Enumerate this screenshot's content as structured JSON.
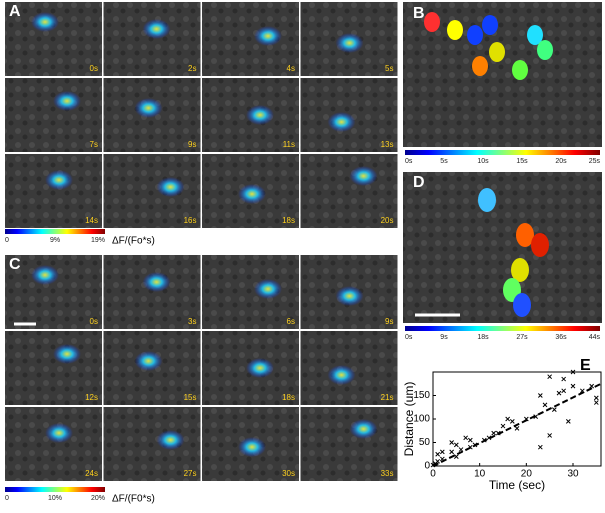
{
  "panels": {
    "A": {
      "label": "A",
      "times": [
        "0s",
        "2s",
        "4s",
        "5s",
        "7s",
        "9s",
        "11s",
        "13s",
        "14s",
        "16s",
        "18s",
        "20s"
      ],
      "colorbar_ticks": [
        "0",
        "9%",
        "19%"
      ],
      "colorbar_label": "ΔF/(Fo*s)"
    },
    "B": {
      "label": "B",
      "colorbar_ticks": [
        "0s",
        "5s",
        "10s",
        "15s",
        "20s",
        "25s"
      ]
    },
    "C": {
      "label": "C",
      "times": [
        "0s",
        "3s",
        "6s",
        "9s",
        "12s",
        "15s",
        "18s",
        "21s",
        "24s",
        "27s",
        "30s",
        "33s"
      ],
      "colorbar_ticks": [
        "0",
        "10%",
        "20%"
      ],
      "colorbar_label": "ΔF/(F0*s)"
    },
    "D": {
      "label": "D",
      "colorbar_ticks": [
        "0s",
        "9s",
        "18s",
        "27s",
        "36s",
        "44s"
      ]
    }
  },
  "chart_data": {
    "type": "scatter",
    "label": "E",
    "x_label": "Time (sec)",
    "y_label": "Distance (um)",
    "x": [
      0,
      0.5,
      1,
      1,
      2,
      2,
      4,
      4,
      5,
      5,
      6,
      7,
      8,
      8,
      9,
      11,
      12,
      13,
      14,
      15,
      16,
      17,
      18,
      20,
      22,
      23,
      23,
      24,
      25,
      25,
      26,
      27,
      28,
      28,
      29,
      30,
      30,
      32,
      34,
      35,
      35
    ],
    "y": [
      2,
      5,
      10,
      25,
      30,
      15,
      50,
      30,
      45,
      20,
      35,
      60,
      40,
      55,
      45,
      55,
      60,
      70,
      70,
      85,
      100,
      95,
      80,
      100,
      105,
      40,
      150,
      130,
      65,
      190,
      120,
      155,
      160,
      185,
      95,
      170,
      200,
      160,
      170,
      145,
      135
    ],
    "fit": {
      "x": [
        0,
        36
      ],
      "y": [
        0,
        175
      ]
    },
    "xlim": [
      0,
      36
    ],
    "ylim": [
      0,
      200
    ],
    "xticks": [
      0,
      10,
      20,
      30
    ],
    "yticks": [
      0,
      50,
      100,
      150
    ]
  }
}
